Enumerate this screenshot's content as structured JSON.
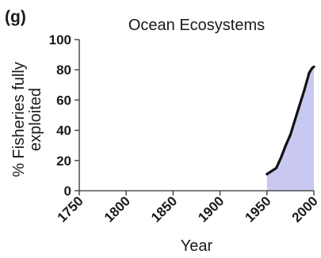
{
  "panel_label": "(g)",
  "chart_data": {
    "type": "area",
    "title": "Ocean Ecosystems",
    "xlabel": "Year",
    "ylabel_lines": [
      "% Fisheries fully",
      "exploited"
    ],
    "xlim": [
      1750,
      2000
    ],
    "ylim": [
      0,
      100
    ],
    "x_ticks": [
      1750,
      1800,
      1850,
      1900,
      1950,
      2000
    ],
    "y_ticks": [
      0,
      20,
      40,
      60,
      80,
      100
    ],
    "grid": false,
    "colors": {
      "line": "#111111",
      "fill": "#c8c8f0",
      "axis": "#333333"
    },
    "series": [
      {
        "x": [
          1950,
          1955,
          1960,
          1965,
          1970,
          1975,
          1980,
          1985,
          1990,
          1995,
          1998,
          2000
        ],
        "y": [
          11,
          13,
          15,
          22,
          30,
          37,
          47,
          57,
          67,
          78,
          81,
          82
        ]
      }
    ]
  }
}
